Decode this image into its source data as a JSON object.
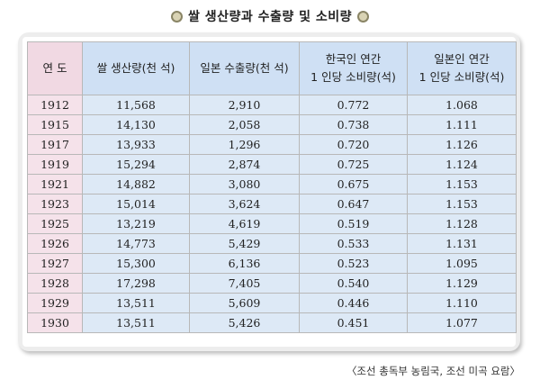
{
  "title": "쌀 생산량과 수출량 및 소비량",
  "headers": {
    "year": "연 도",
    "production": "쌀 생산량(천 석)",
    "export": "일본 수출량(천 석)",
    "korea_consumption_line1": "한국인 연간",
    "korea_consumption_line2": "1 인당 소비량(석)",
    "japan_consumption_line1": "일본인 연간",
    "japan_consumption_line2": "1 인당 소비량(석)"
  },
  "rows": [
    [
      "1912",
      "11,568",
      "2,910",
      "0.772",
      "1.068"
    ],
    [
      "1915",
      "14,130",
      "2,058",
      "0.738",
      "1.111"
    ],
    [
      "1917",
      "13,933",
      "1,296",
      "0.720",
      "1.126"
    ],
    [
      "1919",
      "15,294",
      "2,874",
      "0.725",
      "1.124"
    ],
    [
      "1921",
      "14,882",
      "3,080",
      "0.675",
      "1.153"
    ],
    [
      "1923",
      "15,014",
      "3,624",
      "0.647",
      "1.153"
    ],
    [
      "1925",
      "13,219",
      "4,619",
      "0.519",
      "1.128"
    ],
    [
      "1926",
      "14,773",
      "5,429",
      "0.533",
      "1.131"
    ],
    [
      "1927",
      "15,300",
      "6,136",
      "0.523",
      "1.095"
    ],
    [
      "1928",
      "17,298",
      "7,405",
      "0.540",
      "1.129"
    ],
    [
      "1929",
      "13,511",
      "5,609",
      "0.446",
      "1.110"
    ],
    [
      "1930",
      "13,511",
      "5,426",
      "0.451",
      "1.077"
    ]
  ],
  "source": "〈조선 총독부 농림국, 조선 미곡 요람〉"
}
